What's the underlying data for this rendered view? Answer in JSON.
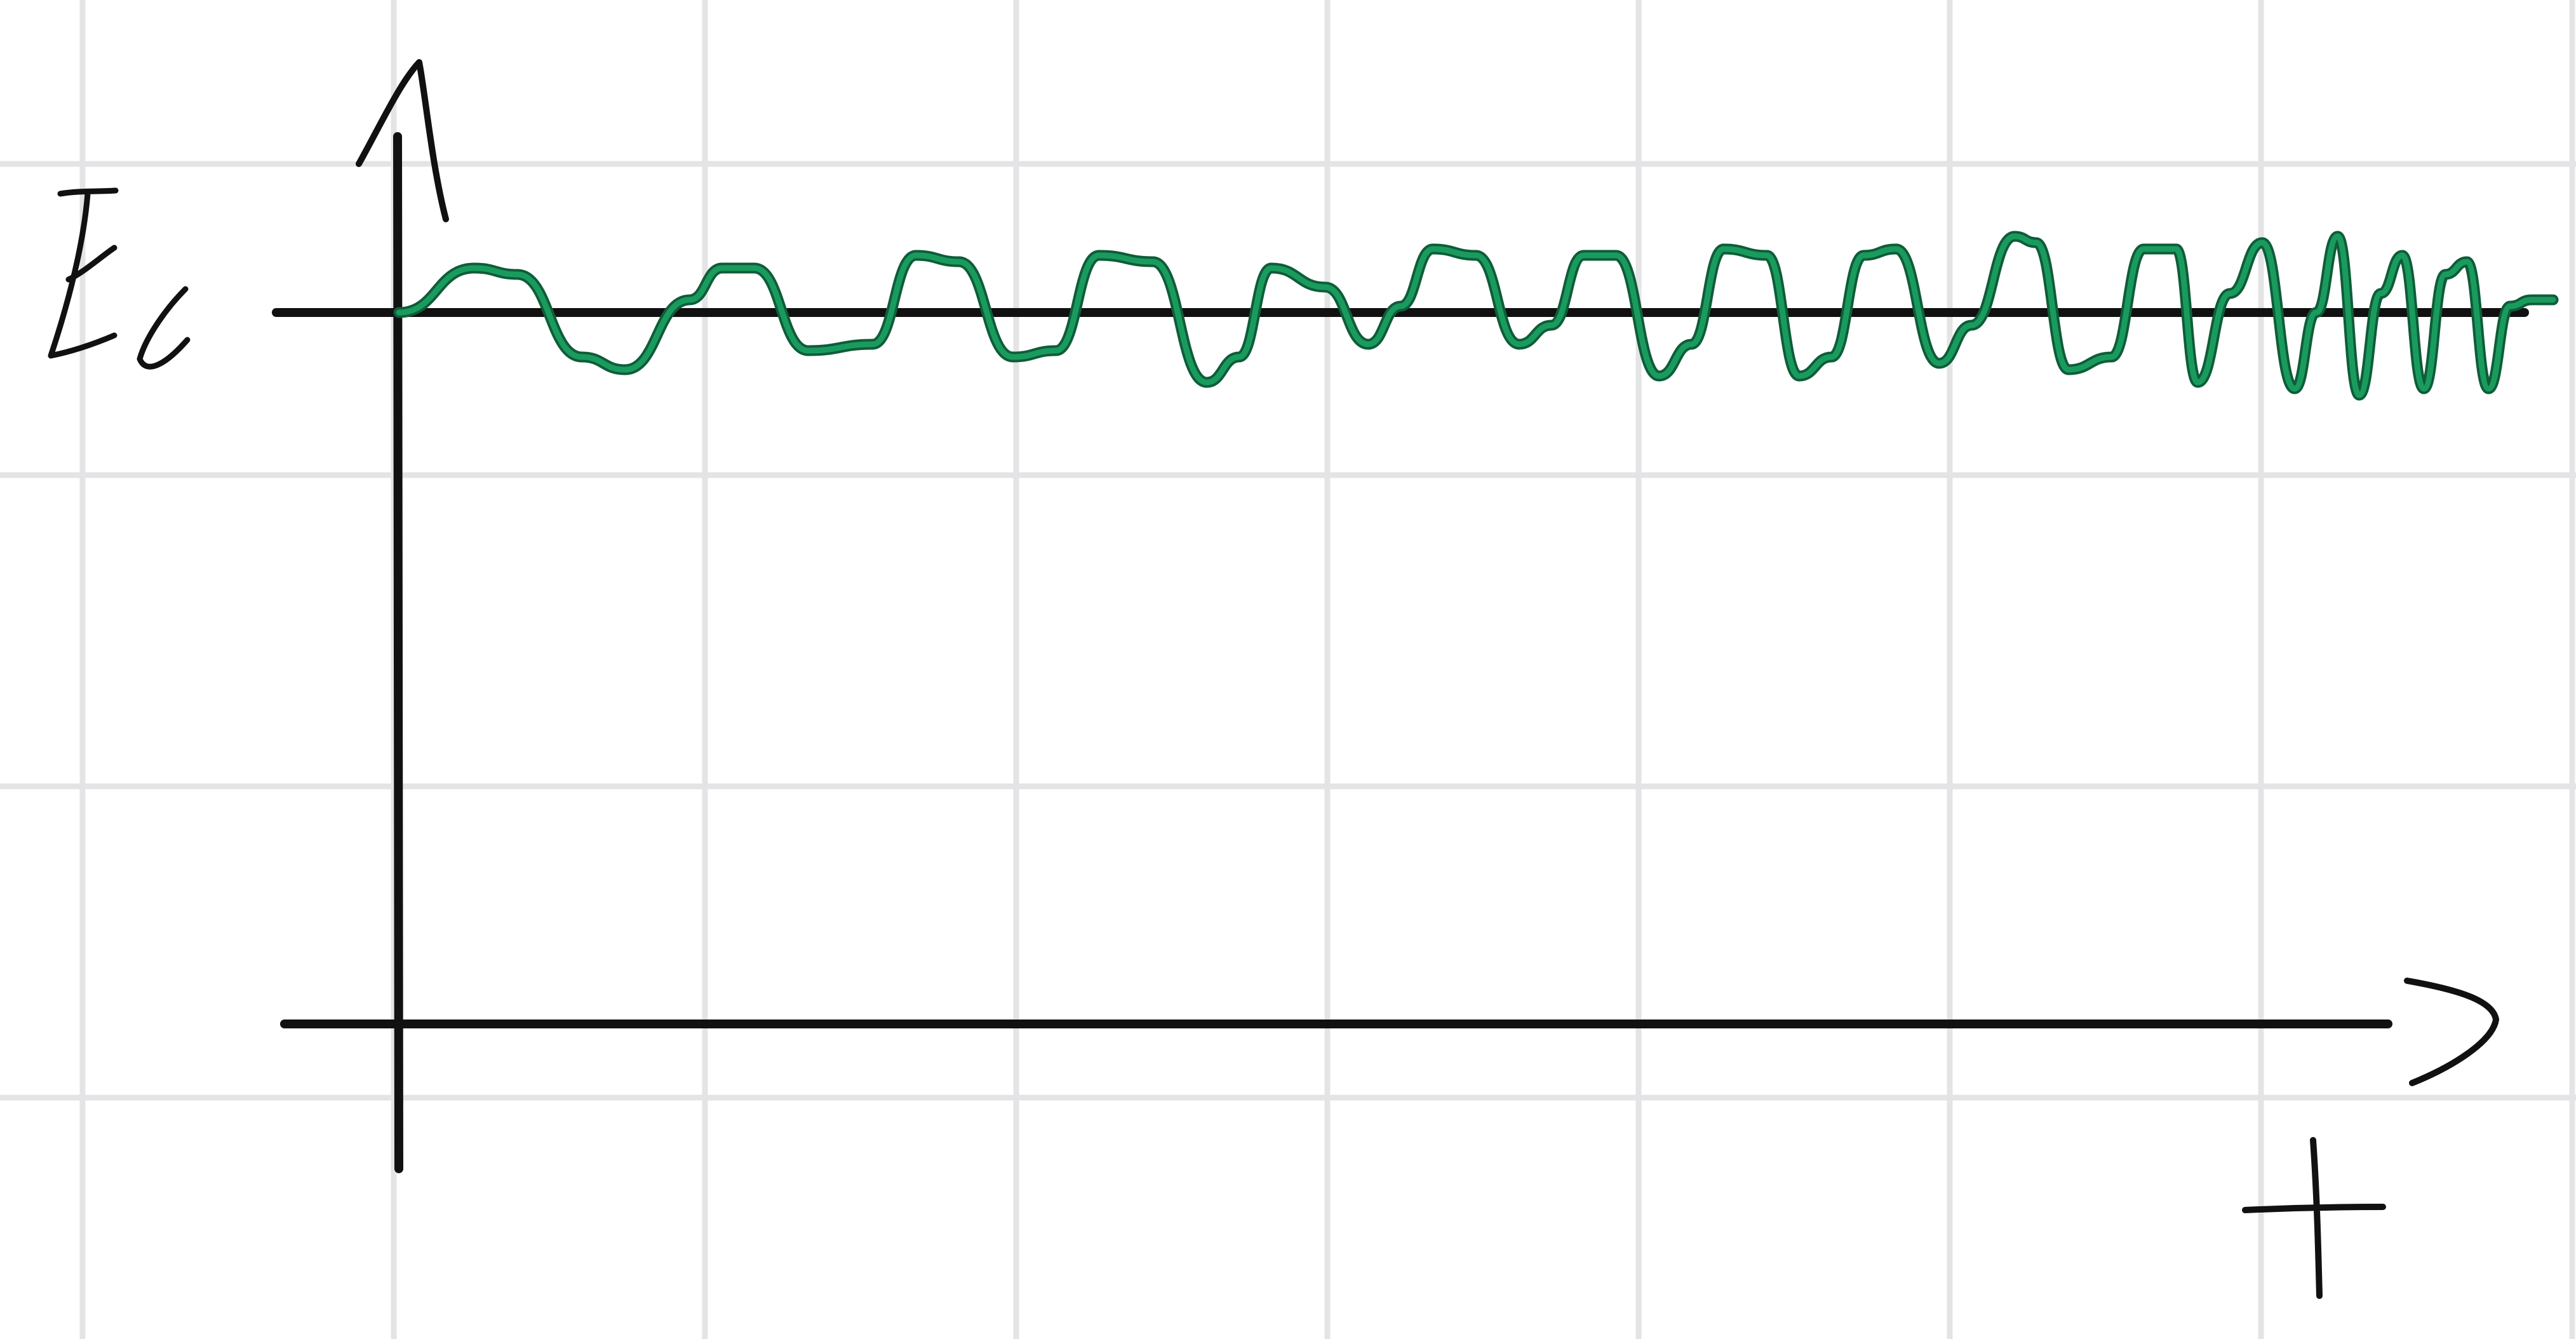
{
  "chart_data": {
    "type": "line",
    "title": "",
    "xlabel": "t",
    "ylabel": "",
    "reference_line_label": "Ec",
    "xlim": [
      0,
      10
    ],
    "ylim": [
      -1,
      1
    ],
    "grid": true,
    "hand_drawn": true,
    "colors": {
      "paper": "#ffffff",
      "grid": "#e4e4e6",
      "axes": "#111111",
      "signal": "#1a9b5e"
    },
    "series": [
      {
        "description_free_signal": true,
        "x": [
          0.0,
          0.35,
          0.55,
          0.85,
          1.05,
          1.35,
          1.5,
          1.65,
          1.9,
          2.2,
          2.4,
          2.6,
          2.85,
          3.05,
          3.25,
          3.5,
          3.75,
          3.9,
          4.05,
          4.3,
          4.5,
          4.65,
          4.8,
          5.0,
          5.2,
          5.35,
          5.5,
          5.65,
          5.85,
          6.0,
          6.15,
          6.35,
          6.5,
          6.65,
          6.8,
          6.95,
          7.15,
          7.3,
          7.5,
          7.6,
          7.75,
          7.95,
          8.1,
          8.25,
          8.35,
          8.5,
          8.65,
          8.8,
          8.9,
          9.0,
          9.1,
          9.2,
          9.3,
          9.4,
          9.5,
          9.6,
          9.7,
          9.8,
          9.9,
          10.0
        ],
        "values": [
          0.0,
          0.35,
          0.3,
          -0.35,
          -0.45,
          0.1,
          0.35,
          0.35,
          -0.3,
          -0.25,
          0.45,
          0.4,
          -0.35,
          -0.3,
          0.45,
          0.4,
          -0.55,
          -0.35,
          0.35,
          0.2,
          -0.25,
          0.05,
          0.5,
          0.45,
          -0.25,
          -0.1,
          0.45,
          0.45,
          -0.5,
          -0.25,
          0.5,
          0.45,
          -0.5,
          -0.35,
          0.45,
          0.5,
          -0.4,
          -0.1,
          0.6,
          0.55,
          -0.45,
          -0.35,
          0.5,
          0.5,
          -0.55,
          0.15,
          0.55,
          -0.6,
          0.0,
          0.6,
          -0.65,
          0.15,
          0.45,
          -0.6,
          0.3,
          0.4,
          -0.6,
          0.05,
          0.1,
          0.1
        ]
      }
    ]
  }
}
